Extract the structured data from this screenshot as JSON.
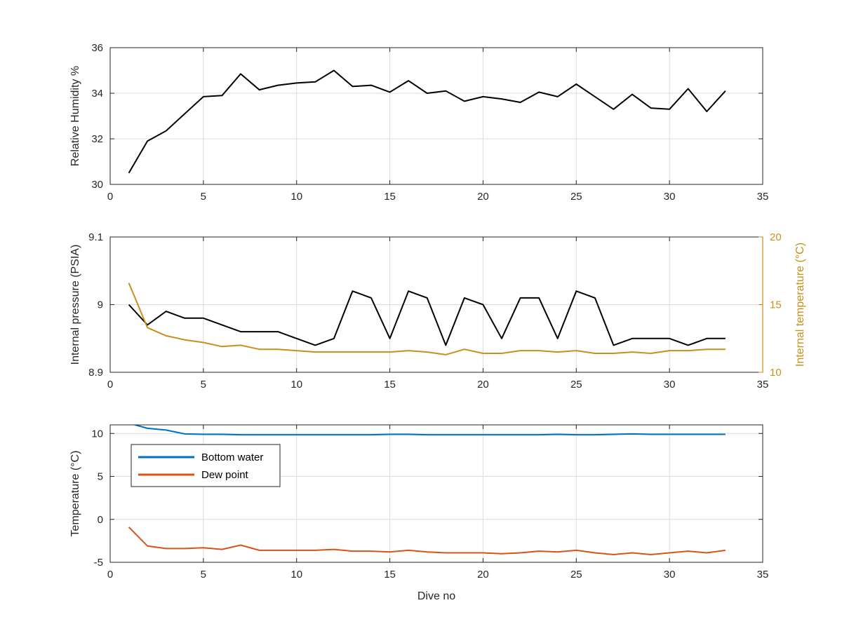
{
  "chart_data": [
    {
      "type": "line",
      "xlabel": "",
      "ylabel": "Relative Humidity %",
      "xlim": [
        0,
        35
      ],
      "ylim": [
        30,
        36
      ],
      "xticks": [
        0,
        5,
        10,
        15,
        20,
        25,
        30,
        35
      ],
      "yticks": [
        30,
        32,
        34,
        36
      ],
      "grid": true,
      "x": [
        1,
        2,
        3,
        4,
        5,
        6,
        7,
        8,
        9,
        10,
        11,
        12,
        13,
        14,
        15,
        16,
        17,
        18,
        19,
        20,
        21,
        22,
        23,
        24,
        25,
        26,
        27,
        28,
        29,
        30,
        31,
        32,
        33
      ],
      "series": [
        {
          "color": "#000000",
          "values": [
            30.5,
            31.9,
            32.35,
            33.1,
            33.85,
            33.9,
            34.85,
            34.15,
            34.35,
            34.45,
            34.5,
            35.0,
            34.3,
            34.35,
            34.05,
            34.55,
            34.0,
            34.1,
            33.65,
            33.85,
            33.75,
            33.6,
            34.05,
            33.85,
            34.4,
            33.85,
            33.3,
            33.95,
            33.35,
            33.3,
            34.2,
            33.2,
            34.1
          ]
        }
      ]
    },
    {
      "type": "line",
      "xlabel": "",
      "ylabel": "Internal pressure (PSIA)",
      "ylabel_right": "Internal temperature (°C)",
      "xlim": [
        0,
        35
      ],
      "ylim": [
        8.9,
        9.1
      ],
      "ylim_right": [
        10,
        20
      ],
      "xticks": [
        0,
        5,
        10,
        15,
        20,
        25,
        30,
        35
      ],
      "yticks": [
        "8.9",
        "9",
        "9.1"
      ],
      "yticks_right": [
        10,
        15,
        20
      ],
      "grid": true,
      "x": [
        1,
        2,
        3,
        4,
        5,
        6,
        7,
        8,
        9,
        10,
        11,
        12,
        13,
        14,
        15,
        16,
        17,
        18,
        19,
        20,
        21,
        22,
        23,
        24,
        25,
        26,
        27,
        28,
        29,
        30,
        31,
        32,
        33
      ],
      "series": [
        {
          "axis": "left",
          "color": "#000000",
          "values": [
            9.0,
            8.97,
            8.99,
            8.98,
            8.98,
            8.97,
            8.96,
            8.96,
            8.96,
            8.95,
            8.94,
            8.95,
            9.02,
            9.01,
            8.95,
            9.02,
            9.01,
            8.94,
            9.01,
            9.0,
            8.95,
            9.01,
            9.01,
            8.95,
            9.02,
            9.01,
            8.94,
            8.95,
            8.95,
            8.95,
            8.94,
            8.95,
            8.95
          ]
        },
        {
          "axis": "right",
          "color": "#C8901A",
          "values": [
            16.6,
            13.3,
            12.7,
            12.4,
            12.2,
            11.9,
            12.0,
            11.7,
            11.7,
            11.6,
            11.5,
            11.5,
            11.5,
            11.5,
            11.5,
            11.6,
            11.5,
            11.3,
            11.7,
            11.4,
            11.4,
            11.6,
            11.6,
            11.5,
            11.6,
            11.4,
            11.4,
            11.5,
            11.4,
            11.6,
            11.6,
            11.7,
            11.7
          ]
        }
      ]
    },
    {
      "type": "line",
      "xlabel": "Dive no",
      "ylabel": "Temperature (°C)",
      "xlim": [
        0,
        35
      ],
      "ylim": [
        -5,
        11
      ],
      "xticks": [
        0,
        5,
        10,
        15,
        20,
        25,
        30,
        35
      ],
      "yticks": [
        -5,
        0,
        5,
        10
      ],
      "grid": true,
      "legend": "top-left",
      "x": [
        1,
        2,
        3,
        4,
        5,
        6,
        7,
        8,
        9,
        10,
        11,
        12,
        13,
        14,
        15,
        16,
        17,
        18,
        19,
        20,
        21,
        22,
        23,
        24,
        25,
        26,
        27,
        28,
        29,
        30,
        31,
        32,
        33
      ],
      "series": [
        {
          "name": "Bottom water",
          "color": "#0072BD",
          "values": [
            11.2,
            10.6,
            10.4,
            9.95,
            9.9,
            9.9,
            9.85,
            9.85,
            9.85,
            9.85,
            9.85,
            9.85,
            9.85,
            9.85,
            9.9,
            9.9,
            9.85,
            9.85,
            9.85,
            9.85,
            9.85,
            9.85,
            9.85,
            9.9,
            9.85,
            9.85,
            9.9,
            9.95,
            9.9,
            9.9,
            9.9,
            9.9,
            9.9
          ]
        },
        {
          "name": "Dew point",
          "color": "#D95319",
          "values": [
            -0.9,
            -3.1,
            -3.4,
            -3.4,
            -3.3,
            -3.5,
            -3.0,
            -3.6,
            -3.6,
            -3.6,
            -3.6,
            -3.5,
            -3.7,
            -3.7,
            -3.8,
            -3.6,
            -3.8,
            -3.9,
            -3.9,
            -3.9,
            -4.0,
            -3.9,
            -3.7,
            -3.8,
            -3.6,
            -3.9,
            -4.1,
            -3.9,
            -4.1,
            -3.9,
            -3.7,
            -3.9,
            -3.6
          ]
        }
      ]
    }
  ]
}
